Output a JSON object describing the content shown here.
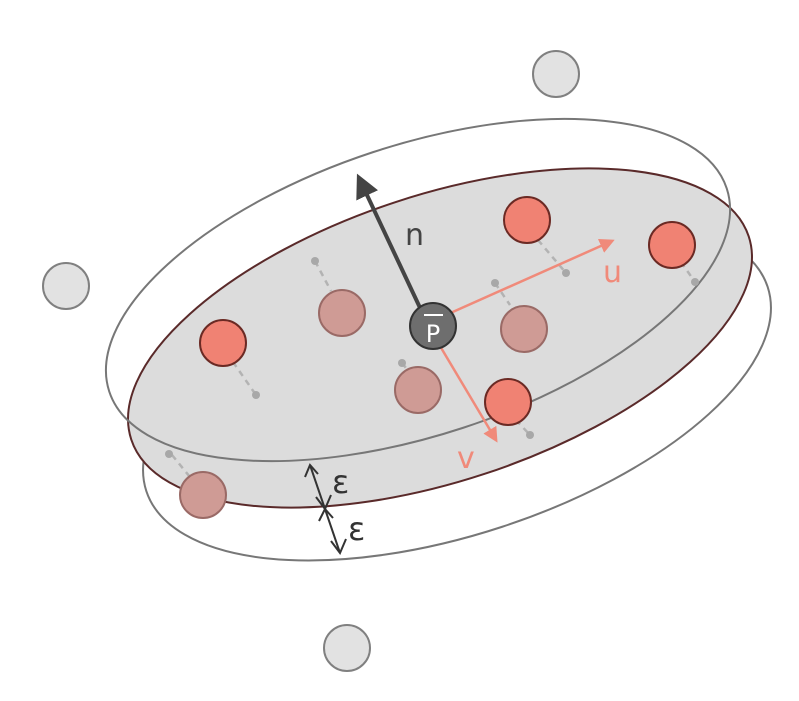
{
  "labels": {
    "normal": "n",
    "centroid": "P",
    "axis_u": "u",
    "axis_v": "v",
    "epsilon_upper": "ε",
    "epsilon_lower": "ε"
  },
  "colors": {
    "plane_fill": "#dcdcdc",
    "plane_stroke": "#5a2a2a",
    "outline_stroke": "#777777",
    "inlier_fill": "#f08273",
    "inlier_stroke": "#6b2a24",
    "inlier_below_fill": "#cf9b95",
    "inlier_below_stroke": "#9a6a66",
    "outlier_fill": "#e2e2e2",
    "outlier_stroke": "#808080",
    "centroid_fill": "#6e6e6e",
    "normal_arrow": "#444444",
    "axis_arrow": "#f08a7a",
    "projection_line": "#b3b3b3",
    "epsilon_arrow": "#333333"
  }
}
